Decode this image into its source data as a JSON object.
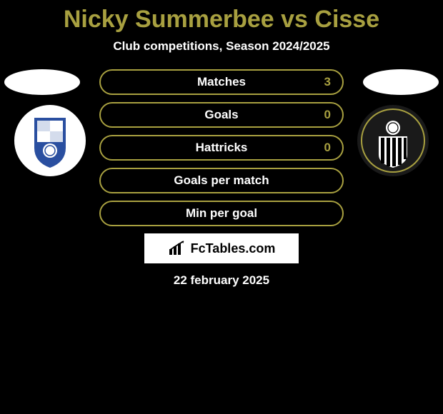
{
  "title": {
    "text": "Nicky Summerbee vs Cisse",
    "color": "#a8a040",
    "fontsize": 34
  },
  "subtitle": {
    "text": "Club competitions, Season 2024/2025",
    "color": "#ffffff",
    "fontsize": 17
  },
  "flags": {
    "left_color": "#ffffff",
    "right_color": "#ffffff"
  },
  "clubs": {
    "left": {
      "name": "tranmere-rovers-badge",
      "bg_color": "#ffffff",
      "accent": "#2a4fa0"
    },
    "right": {
      "name": "notts-county-badge",
      "bg_color": "#1a1a1a",
      "accent": "#a8a040"
    }
  },
  "stats": {
    "row_border_color": "#a8a040",
    "row_border_width": 2,
    "label_color": "#ffffff",
    "value_color": "#a8a040",
    "label_fontsize": 17,
    "value_fontsize": 17,
    "rows": [
      {
        "label": "Matches",
        "value": "3"
      },
      {
        "label": "Goals",
        "value": "0"
      },
      {
        "label": "Hattricks",
        "value": "0"
      },
      {
        "label": "Goals per match",
        "value": ""
      },
      {
        "label": "Min per goal",
        "value": ""
      }
    ]
  },
  "brand": {
    "box_bg": "#ffffff",
    "icon_name": "bar-chart-icon",
    "text": "FcTables.com"
  },
  "date": {
    "text": "22 february 2025",
    "color": "#ffffff",
    "fontsize": 17
  },
  "background_color": "#000000"
}
